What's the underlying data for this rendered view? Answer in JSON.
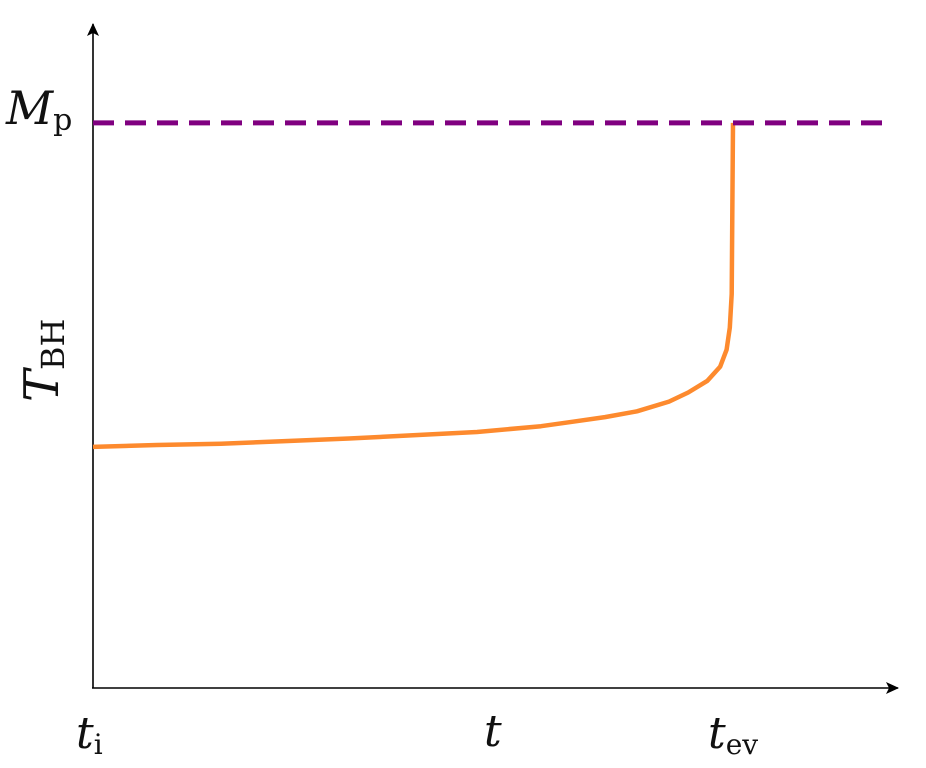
{
  "chart_data": {
    "type": "line",
    "xlabel": "t",
    "ylabel": {
      "main": "T",
      "sub": "BH"
    },
    "x_ticks": [
      {
        "main": "t",
        "sub": "i"
      },
      {
        "main": "t",
        "sub": "ev"
      }
    ],
    "y_ticks": [
      {
        "main": "M",
        "sub": "p"
      }
    ],
    "series": [
      {
        "style": "solid",
        "color": "#fd8a2e",
        "x": [
          0,
          0.1,
          0.2,
          0.3,
          0.4,
          0.5,
          0.6,
          0.7,
          0.75,
          0.8,
          0.85,
          0.9,
          0.93,
          0.96,
          0.98,
          0.99,
          0.995,
          0.998,
          1.0
        ],
        "y": [
          0.372,
          0.375,
          0.377,
          0.381,
          0.385,
          0.39,
          0.395,
          0.404,
          0.411,
          0.418,
          0.427,
          0.442,
          0.456,
          0.474,
          0.496,
          0.522,
          0.556,
          0.608,
          0.872
        ]
      },
      {
        "style": "dashed",
        "color": "#800080",
        "x": [
          0,
          1.25
        ],
        "y": [
          0.872,
          0.872
        ]
      }
    ],
    "xlim": [
      0,
      1.25
    ],
    "ylim": [
      0,
      1.0
    ],
    "grid": false,
    "legend": "none"
  }
}
